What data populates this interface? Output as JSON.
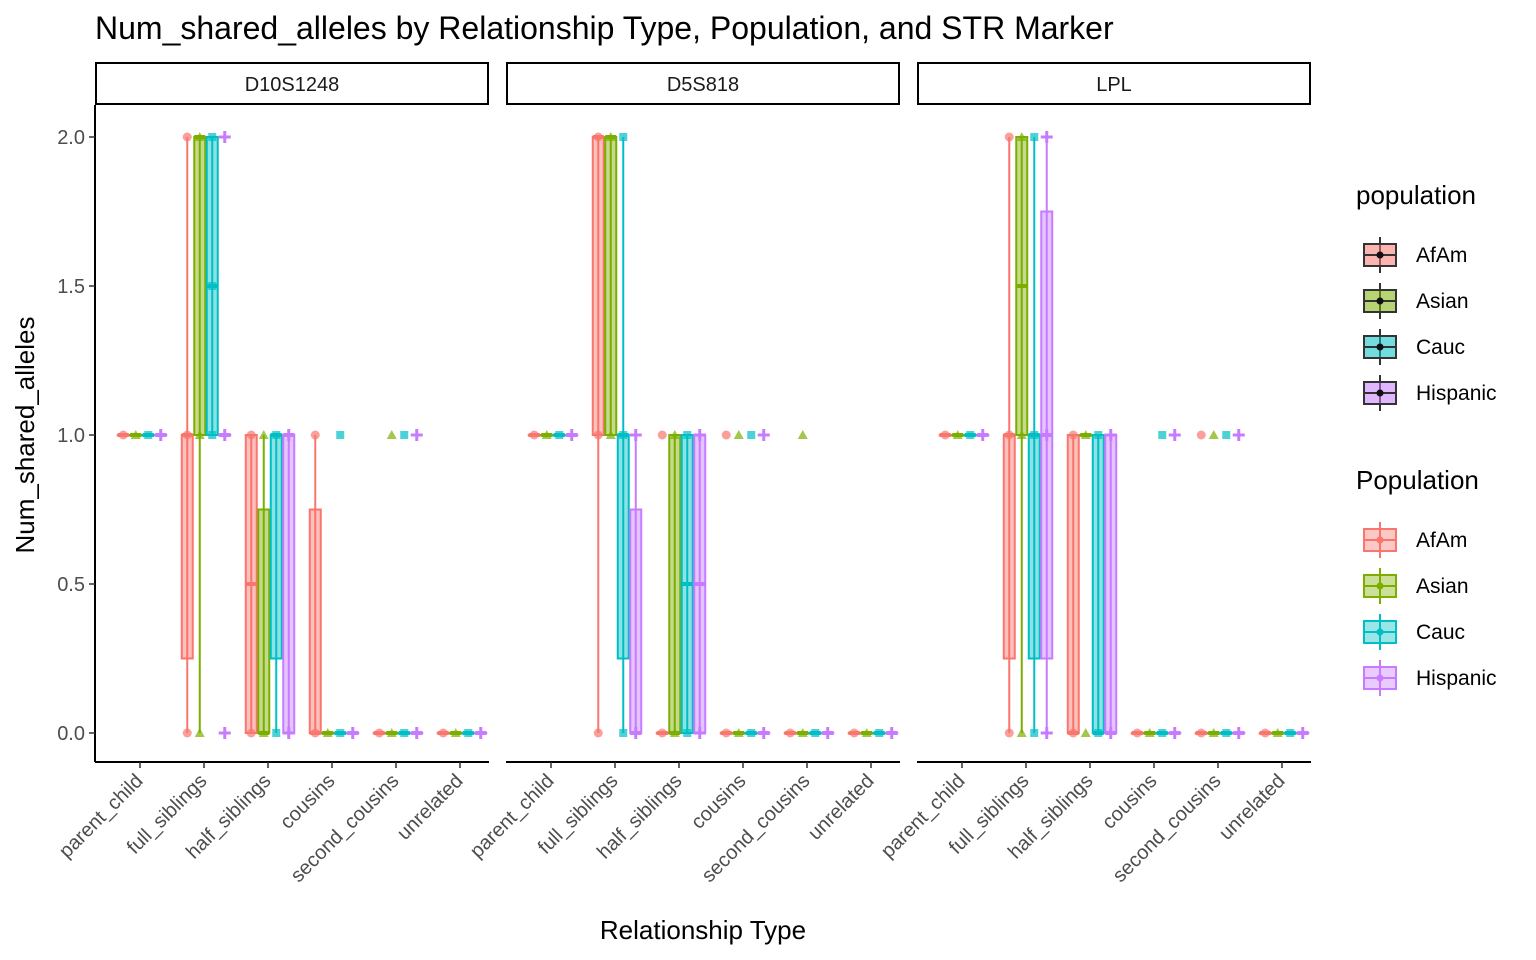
{
  "chart_data": {
    "type": "boxplot",
    "title": "Num_shared_alleles by Relationship Type, Population, and STR Marker",
    "xlabel": "Relationship Type",
    "ylabel": "Num_shared_alleles",
    "ylim": [
      -0.09,
      2.1
    ],
    "yticks": [
      "0.0",
      "0.5",
      "1.0",
      "1.5",
      "2.0"
    ],
    "categories": [
      "parent_child",
      "full_siblings",
      "half_siblings",
      "cousins",
      "second_cousins",
      "unrelated"
    ],
    "populations": [
      "AfAm",
      "Asian",
      "Cauc",
      "Hispanic"
    ],
    "colors": {
      "AfAm": "#F8766D",
      "Asian": "#7CAE00",
      "Cauc": "#00BFC4",
      "Hispanic": "#C77CFF"
    },
    "legend_fill_title": "population",
    "legend_color_title": "Population",
    "legend_position": "right",
    "panels": [
      {
        "marker": "D10S1248",
        "boxes": {
          "parent_child": [
            [
              1,
              1,
              1,
              1,
              1
            ],
            [
              1,
              1,
              1,
              1,
              1
            ],
            [
              1,
              1,
              1,
              1,
              1
            ],
            [
              1,
              1,
              1,
              1,
              1
            ]
          ],
          "full_siblings": [
            [
              0,
              0.25,
              1,
              1,
              2
            ],
            [
              0,
              1,
              2,
              2,
              2
            ],
            [
              1,
              1,
              1.5,
              2,
              2
            ],
            [
              1,
              1,
              1,
              1,
              1
            ]
          ],
          "half_siblings": [
            [
              0,
              0,
              0.5,
              1,
              1
            ],
            [
              0,
              0,
              0,
              0.75,
              1
            ],
            [
              0,
              0.25,
              1,
              1,
              1
            ],
            [
              0,
              0,
              1,
              1,
              1
            ]
          ],
          "cousins": [
            [
              0,
              0,
              0,
              0.75,
              1
            ],
            [
              0,
              0,
              0,
              0,
              0
            ],
            [
              0,
              0,
              0,
              0,
              0
            ],
            [
              0,
              0,
              0,
              0,
              0
            ]
          ],
          "second_cousins": [
            [
              0,
              0,
              0,
              0,
              0
            ],
            [
              0,
              0,
              0,
              0,
              0
            ],
            [
              0,
              0,
              0,
              0,
              0
            ],
            [
              0,
              0,
              0,
              0,
              0
            ]
          ],
          "unrelated": [
            [
              0,
              0,
              0,
              0,
              0
            ],
            [
              0,
              0,
              0,
              0,
              0
            ],
            [
              0,
              0,
              0,
              0,
              0
            ],
            [
              0,
              0,
              0,
              0,
              0
            ]
          ]
        },
        "points": {
          "parent_child": [
            [
              1
            ],
            [
              1
            ],
            [
              1
            ],
            [
              1
            ]
          ],
          "full_siblings": [
            [
              0,
              1,
              2
            ],
            [
              0,
              1,
              2
            ],
            [
              1,
              1.5,
              2
            ],
            [
              0,
              1,
              2
            ]
          ],
          "half_siblings": [
            [
              0,
              1
            ],
            [
              0,
              1
            ],
            [
              0,
              1
            ],
            [
              0,
              1
            ]
          ],
          "cousins": [
            [
              0,
              1
            ],
            [
              0
            ],
            [
              0,
              1
            ],
            [
              0
            ]
          ],
          "second_cousins": [
            [
              0
            ],
            [
              0,
              1
            ],
            [
              0,
              1
            ],
            [
              0,
              1
            ]
          ],
          "unrelated": [
            [
              0
            ],
            [
              0
            ],
            [
              0
            ],
            [
              0
            ]
          ]
        }
      },
      {
        "marker": "D5S818",
        "boxes": {
          "parent_child": [
            [
              1,
              1,
              1,
              1,
              1
            ],
            [
              1,
              1,
              1,
              1,
              1
            ],
            [
              1,
              1,
              1,
              1,
              1
            ],
            [
              1,
              1,
              1,
              1,
              1
            ]
          ],
          "full_siblings": [
            [
              0,
              1,
              2,
              2,
              2
            ],
            [
              1,
              1,
              2,
              2,
              2
            ],
            [
              0,
              0.25,
              1,
              1,
              2
            ],
            [
              0,
              0,
              0,
              0.75,
              1
            ]
          ],
          "half_siblings": [
            [
              0,
              0,
              0,
              0,
              0
            ],
            [
              0,
              0,
              0,
              1,
              1
            ],
            [
              0,
              0,
              0.5,
              1,
              1
            ],
            [
              0,
              0,
              0.5,
              1,
              1
            ]
          ],
          "cousins": [
            [
              0,
              0,
              0,
              0,
              0
            ],
            [
              0,
              0,
              0,
              0,
              0
            ],
            [
              0,
              0,
              0,
              0,
              0
            ],
            [
              0,
              0,
              0,
              0,
              0
            ]
          ],
          "second_cousins": [
            [
              0,
              0,
              0,
              0,
              0
            ],
            [
              0,
              0,
              0,
              0,
              0
            ],
            [
              0,
              0,
              0,
              0,
              0
            ],
            [
              0,
              0,
              0,
              0,
              0
            ]
          ],
          "unrelated": [
            [
              0,
              0,
              0,
              0,
              0
            ],
            [
              0,
              0,
              0,
              0,
              0
            ],
            [
              0,
              0,
              0,
              0,
              0
            ],
            [
              0,
              0,
              0,
              0,
              0
            ]
          ]
        },
        "points": {
          "parent_child": [
            [
              1
            ],
            [
              1
            ],
            [
              1
            ],
            [
              1
            ]
          ],
          "full_siblings": [
            [
              0,
              1,
              2
            ],
            [
              1,
              2
            ],
            [
              0,
              1,
              2
            ],
            [
              0,
              1
            ]
          ],
          "half_siblings": [
            [
              0,
              1
            ],
            [
              0,
              1
            ],
            [
              0,
              1
            ],
            [
              0,
              1
            ]
          ],
          "cousins": [
            [
              0,
              1
            ],
            [
              0,
              1
            ],
            [
              0,
              1
            ],
            [
              0,
              1
            ]
          ],
          "second_cousins": [
            [
              0
            ],
            [
              0,
              1
            ],
            [
              0
            ],
            [
              0
            ]
          ],
          "unrelated": [
            [
              0
            ],
            [
              0
            ],
            [
              0
            ],
            [
              0
            ]
          ]
        }
      },
      {
        "marker": "LPL",
        "boxes": {
          "parent_child": [
            [
              1,
              1,
              1,
              1,
              1
            ],
            [
              1,
              1,
              1,
              1,
              1
            ],
            [
              1,
              1,
              1,
              1,
              1
            ],
            [
              1,
              1,
              1,
              1,
              1
            ]
          ],
          "full_siblings": [
            [
              0,
              0.25,
              1,
              1,
              2
            ],
            [
              0,
              1,
              1.5,
              2,
              2
            ],
            [
              0,
              0.25,
              1,
              1,
              2
            ],
            [
              0,
              0.25,
              1,
              1.75,
              2
            ]
          ],
          "half_siblings": [
            [
              0,
              0,
              0,
              1,
              1
            ],
            [
              1,
              1,
              1,
              1,
              1
            ],
            [
              0,
              0,
              0,
              1,
              1
            ],
            [
              0,
              0,
              0,
              1,
              1
            ]
          ],
          "cousins": [
            [
              0,
              0,
              0,
              0,
              0
            ],
            [
              0,
              0,
              0,
              0,
              0
            ],
            [
              0,
              0,
              0,
              0,
              0
            ],
            [
              0,
              0,
              0,
              0,
              0
            ]
          ],
          "second_cousins": [
            [
              0,
              0,
              0,
              0,
              0
            ],
            [
              0,
              0,
              0,
              0,
              0
            ],
            [
              0,
              0,
              0,
              0,
              0
            ],
            [
              0,
              0,
              0,
              0,
              0
            ]
          ],
          "unrelated": [
            [
              0,
              0,
              0,
              0,
              0
            ],
            [
              0,
              0,
              0,
              0,
              0
            ],
            [
              0,
              0,
              0,
              0,
              0
            ],
            [
              0,
              0,
              0,
              0,
              0
            ]
          ]
        },
        "points": {
          "parent_child": [
            [
              1
            ],
            [
              1
            ],
            [
              1
            ],
            [
              1
            ]
          ],
          "full_siblings": [
            [
              0,
              1,
              2
            ],
            [
              0,
              1,
              2
            ],
            [
              0,
              1,
              2
            ],
            [
              0,
              1,
              2
            ]
          ],
          "half_siblings": [
            [
              0,
              1
            ],
            [
              0,
              1
            ],
            [
              0,
              1
            ],
            [
              0,
              1
            ]
          ],
          "cousins": [
            [
              0
            ],
            [
              0
            ],
            [
              0,
              1
            ],
            [
              0,
              1
            ]
          ],
          "second_cousins": [
            [
              0,
              1
            ],
            [
              0,
              1
            ],
            [
              0,
              1
            ],
            [
              0,
              1
            ]
          ],
          "unrelated": [
            [
              0
            ],
            [
              0
            ],
            [
              0
            ],
            [
              0
            ]
          ]
        }
      }
    ]
  }
}
